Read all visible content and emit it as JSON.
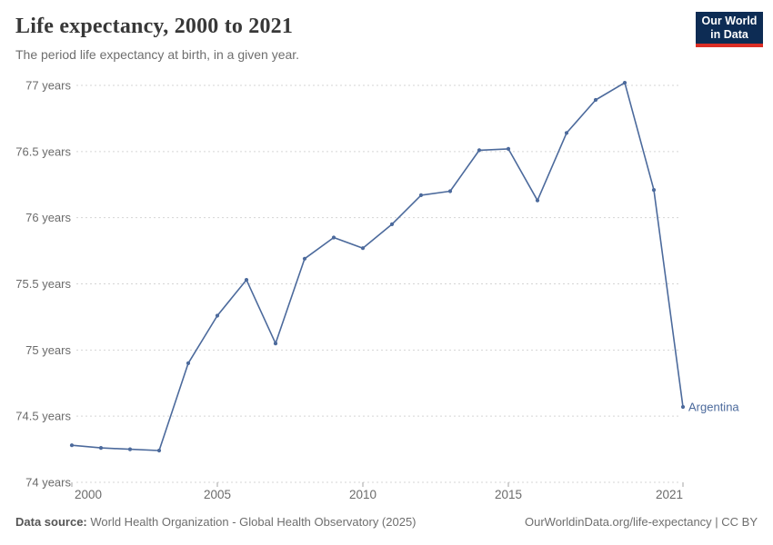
{
  "header": {
    "title": "Life expectancy, 2000 to 2021",
    "subtitle": "The period life expectancy at birth, in a given year.",
    "logo_line1": "Our World",
    "logo_line2": "in Data"
  },
  "chart_data": {
    "type": "line",
    "title": "Life expectancy, 2000 to 2021",
    "xlabel": "",
    "ylabel": "",
    "xlim": [
      2000,
      2021
    ],
    "ylim": [
      74,
      77
    ],
    "grid": "horizontal-dashed",
    "legend_position": "end-of-line-label",
    "x_ticks": [
      2000,
      2005,
      2010,
      2015,
      2021
    ],
    "y_ticks": [
      74,
      74.5,
      75,
      75.5,
      76,
      76.5,
      77
    ],
    "y_tick_labels": [
      "74 years",
      "74.5 years",
      "75 years",
      "75.5 years",
      "76 years",
      "76.5 years",
      "77 years"
    ],
    "series": [
      {
        "name": "Argentina",
        "color": "#4c6a9c",
        "x": [
          2000,
          2001,
          2002,
          2003,
          2004,
          2005,
          2006,
          2007,
          2008,
          2009,
          2010,
          2011,
          2012,
          2013,
          2014,
          2015,
          2016,
          2017,
          2018,
          2019,
          2020,
          2021
        ],
        "values": [
          74.28,
          74.26,
          74.25,
          74.24,
          74.9,
          75.26,
          75.53,
          75.05,
          75.69,
          75.85,
          75.77,
          75.95,
          76.17,
          76.2,
          76.51,
          76.52,
          76.13,
          76.64,
          76.89,
          77.02,
          76.21,
          74.57
        ]
      }
    ]
  },
  "footer": {
    "source_label": "Data source:",
    "source_text": " World Health Organization - Global Health Observatory (2025)",
    "right_text": "OurWorldinData.org/life-expectancy | CC BY"
  },
  "colors": {
    "line": "#4c6a9c",
    "grid": "#d5d5d5",
    "tick": "#a5a5a5",
    "axis_text": "#6b6b6b",
    "logo_bg": "#0d2c54",
    "logo_red": "#dc2e25"
  }
}
